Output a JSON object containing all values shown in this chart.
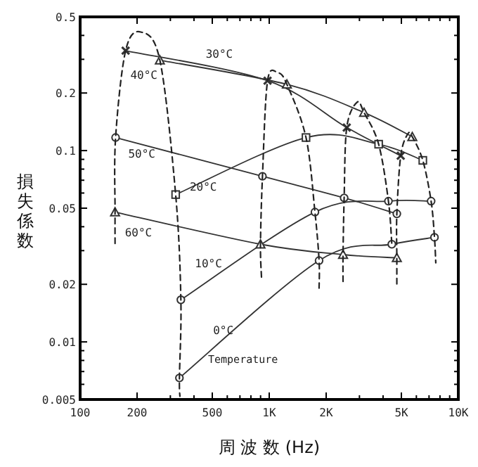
{
  "chart_data": {
    "type": "line",
    "xlabel": "周 波 数 (Hz)",
    "ylabel": "損失係数",
    "log": "xy",
    "grid": false,
    "legend": false,
    "xlim": [
      100,
      10000
    ],
    "ylim": [
      0.005,
      0.5
    ],
    "xticks": [
      100,
      200,
      {
        "value": 300,
        "label": null
      },
      {
        "value": 400,
        "label": null
      },
      500,
      {
        "value": 600,
        "label": null
      },
      {
        "value": 700,
        "label": null
      },
      {
        "value": 800,
        "label": null
      },
      {
        "value": 900,
        "label": null
      },
      {
        "value": 1000,
        "label": "1K"
      },
      {
        "value": 2000,
        "label": "2K"
      },
      {
        "value": 3000,
        "label": null
      },
      {
        "value": 4000,
        "label": null
      },
      {
        "value": 5000,
        "label": "5K"
      },
      {
        "value": 6000,
        "label": null
      },
      {
        "value": 7000,
        "label": null
      },
      {
        "value": 8000,
        "label": null
      },
      {
        "value": 9000,
        "label": null
      },
      {
        "value": 10000,
        "label": "10K"
      }
    ],
    "yticks": [
      0.005,
      {
        "value": 0.006,
        "label": null
      },
      {
        "value": 0.007,
        "label": null
      },
      {
        "value": 0.008,
        "label": null
      },
      {
        "value": 0.009,
        "label": null
      },
      0.01,
      0.02,
      {
        "value": 0.03,
        "label": null
      },
      {
        "value": 0.04,
        "label": null
      },
      0.05,
      {
        "value": 0.06,
        "label": null
      },
      {
        "value": 0.07,
        "label": null
      },
      {
        "value": 0.08,
        "label": null
      },
      {
        "value": 0.09,
        "label": null
      },
      0.1,
      0.2,
      {
        "value": 0.3,
        "label": null
      },
      {
        "value": 0.4,
        "label": null
      },
      0.5
    ],
    "series": [
      {
        "name": "30°C",
        "color": "#333333",
        "line_style": "solid",
        "marker": "cross",
        "x": [
          174,
          980,
          2570,
          4960
        ],
        "values": [
          0.333,
          0.232,
          0.132,
          0.094
        ]
      },
      {
        "name": "40°C",
        "color": "#333333",
        "line_style": "solid",
        "marker": "triangle",
        "x": [
          264,
          1240,
          3175,
          5710
        ],
        "values": [
          0.297,
          0.222,
          0.158,
          0.118
        ]
      },
      {
        "name": "50°C",
        "color": "#333333",
        "line_style": "solid",
        "marker": "circle",
        "x": [
          154,
          921,
          2490,
          4730
        ],
        "values": [
          0.117,
          0.0734,
          0.0566,
          0.0467
        ]
      },
      {
        "name": "20°C",
        "color": "#333333",
        "line_style": "solid",
        "marker": "square",
        "x": [
          320,
          1565,
          3790,
          6490
        ],
        "values": [
          0.0589,
          0.117,
          0.108,
          0.0889
        ]
      },
      {
        "name": "10°C",
        "color": "#333333",
        "line_style": "solid",
        "marker": "circle",
        "x": [
          341,
          1745,
          4270,
          7180
        ],
        "values": [
          0.0166,
          0.0477,
          0.0544,
          0.0544
        ]
      },
      {
        "name": "0°C",
        "color": "#333333",
        "line_style": "solid",
        "marker": "circle",
        "x": [
          335,
          1835,
          4450,
          7480
        ],
        "values": [
          0.00648,
          0.0266,
          0.0324,
          0.0352
        ]
      },
      {
        "name": "60°C",
        "color": "#333333",
        "line_style": "solid",
        "marker": "triangle",
        "x": [
          153,
          899,
          2457,
          4730
        ],
        "values": [
          0.0477,
          0.0324,
          0.0286,
          0.0275
        ]
      },
      {
        "color": "#222222",
        "line_style": "dashed",
        "marker": "none",
        "x": [
          153,
          153,
          154,
          174,
          209,
          264,
          320,
          341,
          335,
          337
        ],
        "values": [
          0.0327,
          0.0477,
          0.117,
          0.333,
          0.417,
          0.297,
          0.0589,
          0.0166,
          0.00648,
          0.0052
        ]
      },
      {
        "color": "#222222",
        "line_style": "dashed",
        "marker": "none",
        "x": [
          910,
          899,
          921,
          980,
          1112,
          1240,
          1565,
          1745,
          1835,
          1835
        ],
        "values": [
          0.0218,
          0.0324,
          0.0734,
          0.232,
          0.255,
          0.222,
          0.117,
          0.0477,
          0.0266,
          0.0191
        ]
      },
      {
        "color": "#222222",
        "line_style": "dashed",
        "marker": "none",
        "x": [
          2457,
          2457,
          2490,
          2570,
          2915,
          3175,
          3790,
          4270,
          4450
        ],
        "values": [
          0.0207,
          0.0286,
          0.0566,
          0.132,
          0.179,
          0.158,
          0.108,
          0.0544,
          0.0324
        ]
      },
      {
        "color": "#222222",
        "line_style": "dashed",
        "marker": "none",
        "x": [
          4730,
          4730,
          4730,
          4960,
          5400,
          5710,
          6490,
          7180,
          7480,
          7600
        ],
        "values": [
          0.0201,
          0.0275,
          0.0467,
          0.094,
          0.122,
          0.118,
          0.0889,
          0.0544,
          0.0352,
          0.0259
        ]
      }
    ],
    "annotations": [
      "Temperature"
    ]
  }
}
